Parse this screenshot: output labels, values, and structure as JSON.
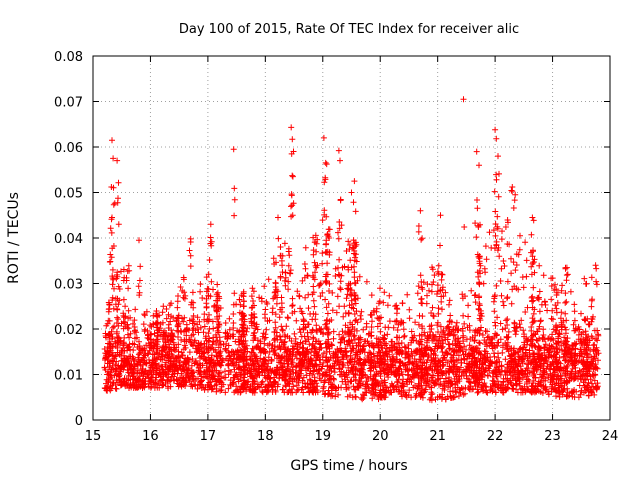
{
  "chart_data": {
    "type": "scatter",
    "title": "Day 100 of 2015, Rate Of TEC Index for receiver alic",
    "xlabel": "GPS time / hours",
    "ylabel": "ROTI / TECUs",
    "xlim": [
      15,
      24
    ],
    "ylim": [
      0,
      0.08
    ],
    "xticks": [
      15,
      16,
      17,
      18,
      19,
      20,
      21,
      22,
      23,
      24
    ],
    "yticks": [
      0,
      0.01,
      0.02,
      0.03,
      0.04,
      0.05,
      0.06,
      0.07,
      0.08
    ],
    "ytick_labels": [
      "0",
      "0.01",
      "0.02",
      "0.03",
      "0.04",
      "0.05",
      "0.06",
      "0.07",
      "0.08"
    ],
    "grid": true,
    "marker": "+",
    "color": "#ff0000",
    "series": [
      {
        "name": "ROTI",
        "note": "dense scatter of several thousand points; baseline ~0.005-0.03 with notable peaks listed",
        "x_range": [
          15.2,
          23.8
        ],
        "baseline_min": 0.004,
        "baseline_max": 0.03,
        "peaks": [
          {
            "x": 15.33,
            "y": 0.0615
          },
          {
            "x": 15.35,
            "y": 0.0575
          },
          {
            "x": 15.42,
            "y": 0.057
          },
          {
            "x": 15.32,
            "y": 0.0512
          },
          {
            "x": 15.33,
            "y": 0.0445
          },
          {
            "x": 15.45,
            "y": 0.043
          },
          {
            "x": 15.8,
            "y": 0.0395
          },
          {
            "x": 16.7,
            "y": 0.0398
          },
          {
            "x": 17.05,
            "y": 0.043
          },
          {
            "x": 17.45,
            "y": 0.0595
          },
          {
            "x": 18.45,
            "y": 0.0643
          },
          {
            "x": 18.47,
            "y": 0.0617
          },
          {
            "x": 18.48,
            "y": 0.0535
          },
          {
            "x": 18.22,
            "y": 0.0445
          },
          {
            "x": 19.02,
            "y": 0.062
          },
          {
            "x": 19.05,
            "y": 0.0565
          },
          {
            "x": 19.28,
            "y": 0.0592
          },
          {
            "x": 19.3,
            "y": 0.057
          },
          {
            "x": 19.55,
            "y": 0.0525
          },
          {
            "x": 19.5,
            "y": 0.05
          },
          {
            "x": 20.7,
            "y": 0.046
          },
          {
            "x": 21.05,
            "y": 0.045
          },
          {
            "x": 21.45,
            "y": 0.0705
          },
          {
            "x": 21.68,
            "y": 0.059
          },
          {
            "x": 21.72,
            "y": 0.056
          },
          {
            "x": 22.0,
            "y": 0.0638
          },
          {
            "x": 22.02,
            "y": 0.0618
          },
          {
            "x": 22.05,
            "y": 0.058
          },
          {
            "x": 22.3,
            "y": 0.0512
          },
          {
            "x": 22.35,
            "y": 0.0495
          },
          {
            "x": 22.65,
            "y": 0.0445
          },
          {
            "x": 23.25,
            "y": 0.0335
          },
          {
            "x": 23.75,
            "y": 0.034
          }
        ],
        "envelope": [
          {
            "x": 15.2,
            "lo": 0.006,
            "hi": 0.028
          },
          {
            "x": 15.5,
            "lo": 0.007,
            "hi": 0.035
          },
          {
            "x": 15.8,
            "lo": 0.007,
            "hi": 0.03
          },
          {
            "x": 16.0,
            "lo": 0.007,
            "hi": 0.022
          },
          {
            "x": 16.4,
            "lo": 0.007,
            "hi": 0.026
          },
          {
            "x": 16.7,
            "lo": 0.007,
            "hi": 0.034
          },
          {
            "x": 17.0,
            "lo": 0.006,
            "hi": 0.032
          },
          {
            "x": 17.4,
            "lo": 0.006,
            "hi": 0.025
          },
          {
            "x": 17.7,
            "lo": 0.006,
            "hi": 0.028
          },
          {
            "x": 18.0,
            "lo": 0.006,
            "hi": 0.03
          },
          {
            "x": 18.3,
            "lo": 0.006,
            "hi": 0.038
          },
          {
            "x": 18.6,
            "lo": 0.006,
            "hi": 0.035
          },
          {
            "x": 18.9,
            "lo": 0.006,
            "hi": 0.04
          },
          {
            "x": 19.2,
            "lo": 0.005,
            "hi": 0.042
          },
          {
            "x": 19.5,
            "lo": 0.005,
            "hi": 0.04
          },
          {
            "x": 19.8,
            "lo": 0.004,
            "hi": 0.03
          },
          {
            "x": 20.1,
            "lo": 0.005,
            "hi": 0.028
          },
          {
            "x": 20.4,
            "lo": 0.005,
            "hi": 0.027
          },
          {
            "x": 20.7,
            "lo": 0.005,
            "hi": 0.03
          },
          {
            "x": 21.0,
            "lo": 0.004,
            "hi": 0.035
          },
          {
            "x": 21.3,
            "lo": 0.005,
            "hi": 0.022
          },
          {
            "x": 21.6,
            "lo": 0.006,
            "hi": 0.03
          },
          {
            "x": 21.9,
            "lo": 0.006,
            "hi": 0.042
          },
          {
            "x": 22.2,
            "lo": 0.006,
            "hi": 0.043
          },
          {
            "x": 22.5,
            "lo": 0.006,
            "hi": 0.04
          },
          {
            "x": 22.8,
            "lo": 0.006,
            "hi": 0.033
          },
          {
            "x": 23.1,
            "lo": 0.005,
            "hi": 0.03
          },
          {
            "x": 23.4,
            "lo": 0.005,
            "hi": 0.028
          },
          {
            "x": 23.7,
            "lo": 0.005,
            "hi": 0.032
          },
          {
            "x": 23.8,
            "lo": 0.007,
            "hi": 0.025
          }
        ]
      }
    ]
  }
}
